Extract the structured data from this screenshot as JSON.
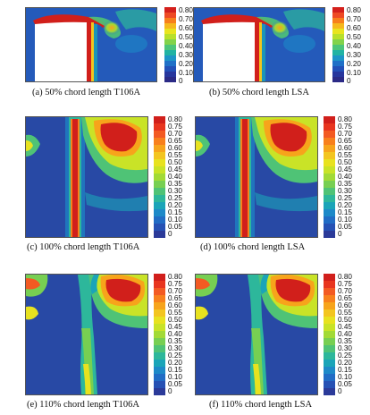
{
  "colorbar": {
    "top": {
      "labels": [
        "0.80",
        "0.70",
        "0.60",
        "0.50",
        "0.40",
        "0.30",
        "0.20",
        "0.10",
        "0"
      ],
      "colors": [
        "#d4201c",
        "#ee4a24",
        "#f77f1b",
        "#f6b81c",
        "#e9e41f",
        "#b8e02b",
        "#82d34a",
        "#4cc57a",
        "#21b3a3",
        "#1d95c7",
        "#1f70c7",
        "#2250b8",
        "#27369d",
        "#2b2a86"
      ]
    },
    "full": {
      "labels": [
        "0.80",
        "0.75",
        "0.70",
        "0.65",
        "0.60",
        "0.55",
        "0.50",
        "0.45",
        "0.40",
        "0.35",
        "0.30",
        "0.25",
        "0.20",
        "0.15",
        "0.10",
        "0.05",
        "0"
      ],
      "colors": [
        "#d11f1b",
        "#e8351f",
        "#f35a22",
        "#f8801c",
        "#f7a41b",
        "#f3c51f",
        "#e8e21f",
        "#c9e327",
        "#a2da36",
        "#77cf52",
        "#4fc376",
        "#2db79b",
        "#1aa4b8",
        "#1d89c8",
        "#216cc5",
        "#2651b4",
        "#2b3a99"
      ]
    }
  },
  "panels": [
    {
      "caption": "(a) 50% chord length T106A"
    },
    {
      "caption": "(b) 50% chord length LSA"
    },
    {
      "caption": "(c) 100% chord length T106A"
    },
    {
      "caption": "(d) 100% chord length LSA"
    },
    {
      "caption": "(e) 110% chord length T106A"
    },
    {
      "caption": "(f) 110% chord length LSA"
    }
  ]
}
